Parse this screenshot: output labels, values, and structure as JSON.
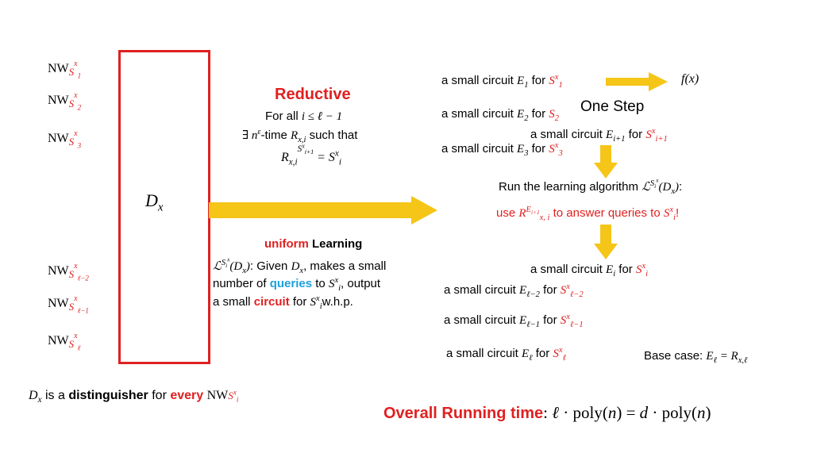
{
  "left": {
    "nw_prefix": "NW",
    "nw_items": [
      "S1x",
      "S2x",
      "S3x",
      "Sℓ−2x",
      "Sℓ−1x",
      "Sℓx"
    ],
    "dx_label": "Dx",
    "bottom_note": {
      "dx": "Dx",
      "is_a": "is a",
      "distinguisher": "distinguisher",
      "for": "for",
      "every": "every",
      "nw": "NW"
    }
  },
  "reductive": {
    "title": "Reductive",
    "line1_prefix": "For all",
    "line1_math": "i ≤ ℓ − 1",
    "line2_math": "∃ nε",
    "line2_text": "-time Rx,i such that",
    "line3_math": "Rx,iSi+1x = Six"
  },
  "learning": {
    "uniform": "uniform",
    "title": "Learning",
    "line1": "ℒSix(Dx): Given Dx, makes a small",
    "line2_a": "number of",
    "line2_queries": "queries",
    "line2_b": "to Six, output",
    "line3_a": "a small",
    "line3_circuit": "circuit",
    "line3_b": "for Six w.h.p."
  },
  "right": {
    "circuit_prefix": "a small circuit",
    "for": "for",
    "e1": "E1",
    "s1": "S1x",
    "fx": "f(x)",
    "e2": "E2",
    "s2": "S2x",
    "one_step": "One Step",
    "ei1": "Ei+1",
    "si1": "Si+1x",
    "e3": "E3",
    "s3": "S3x",
    "run_text": "Run the learning algorithm ℒSix(Dx):",
    "use_text": "use Rx,iEi+1 to answer queries to Six!",
    "ei": "Ei",
    "si": "Six",
    "el2": "Eℓ−2",
    "sl2": "Sℓ−2x",
    "el1": "Eℓ−1",
    "sl1": "Sℓ−1x",
    "el": "Eℓ",
    "sl": "Sℓx",
    "base_case": "Base case: Eℓ = Rx,ℓ"
  },
  "overall": {
    "label": "Overall Running time",
    "formula": ": ℓ · poly(n) = d · poly(n)"
  },
  "colors": {
    "red": "#e02020",
    "arrow": "#f5c518",
    "blue": "#1ea0dc"
  }
}
